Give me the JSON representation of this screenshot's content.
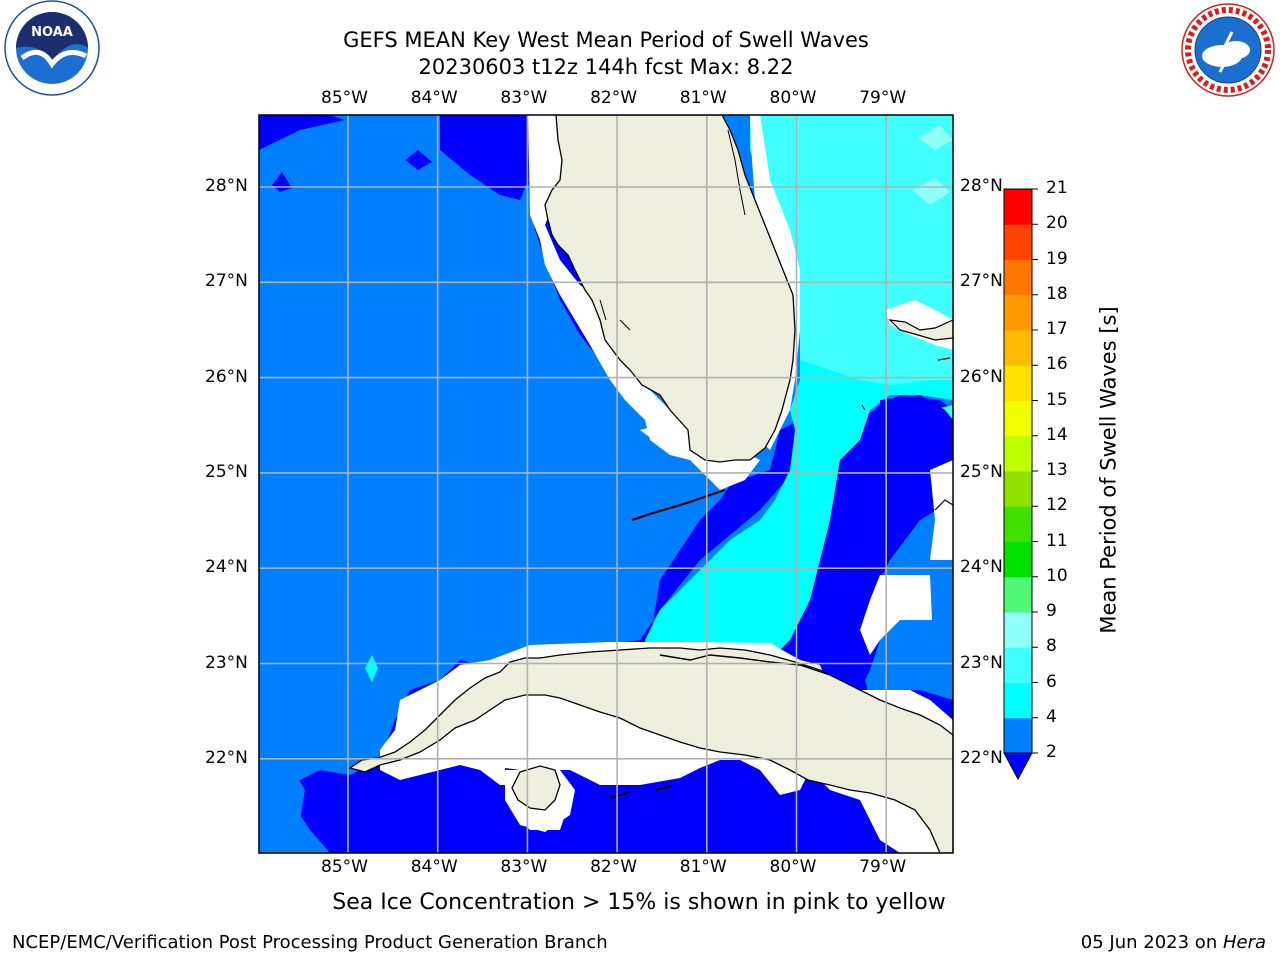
{
  "title": {
    "line1": "GEFS MEAN Key West Mean Period of Swell Waves",
    "line2": "20230603 t12z 144h fcst   Max: 8.22"
  },
  "logos": {
    "left": {
      "icon": "noaa-logo-icon",
      "text": "NOAA",
      "ring_text": "NATIONAL OCEANIC AND ATMOSPHERIC ADMINISTRATION · U.S. DEPARTMENT OF COMMERCE"
    },
    "right": {
      "icon": "nws-logo-icon",
      "ring_text": "NATIONAL WEATHER SERVICE"
    }
  },
  "map": {
    "longitude_labels": [
      "85°W",
      "84°W",
      "83°W",
      "82°W",
      "81°W",
      "80°W",
      "79°W"
    ],
    "latitude_labels": [
      "28°N",
      "27°N",
      "26°N",
      "25°N",
      "24°N",
      "23°N",
      "22°N"
    ],
    "colors": {
      "land": "#eeeedd",
      "no_data": "#ffffff",
      "gridline": "#b0b0b0",
      "coast": "#000000"
    }
  },
  "colorbar": {
    "label": "Mean Period of Swell Waves [s]",
    "ticks": [
      "2",
      "4",
      "6",
      "8",
      "9",
      "10",
      "11",
      "12",
      "13",
      "14",
      "15",
      "16",
      "17",
      "18",
      "19",
      "20",
      "21"
    ],
    "colors": [
      "#0000ff",
      "#0080ff",
      "#00ffff",
      "#40ffff",
      "#90fff8",
      "#50f878",
      "#00e100",
      "#40e000",
      "#90e000",
      "#c0ff00",
      "#f0ff00",
      "#ffe100",
      "#ffbb00",
      "#ff9900",
      "#ff7700",
      "#ff4400",
      "#ff0000"
    ],
    "extend": "min"
  },
  "note": "Sea Ice Concentration > 15% is shown in pink to yellow",
  "footer": {
    "left": "NCEP/EMC/Verification Post Processing Product Generation Branch",
    "right_prefix": "05 Jun 2023 on ",
    "right_machine": "Hera"
  }
}
